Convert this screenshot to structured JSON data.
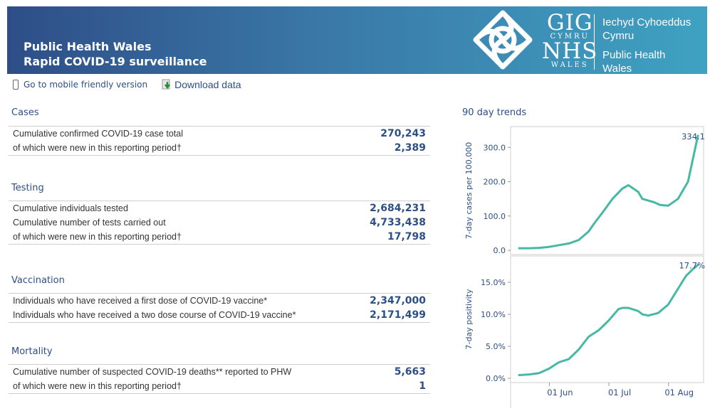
{
  "header": {
    "title_line1": "Public Health Wales",
    "title_line2": "Rapid COVID-19 surveillance",
    "logo_gig": "GIG",
    "logo_cymru": "CYMRU",
    "logo_nhs": "NHS",
    "logo_wales": "WALES",
    "org_welsh_1": "Iechyd Cyhoeddus",
    "org_welsh_2": "Cymru",
    "org_english_1": "Public Health",
    "org_english_2": "Wales"
  },
  "toolbar": {
    "mobile_label": "Go to mobile friendly version",
    "download_label": "Download data"
  },
  "sections": {
    "cases": {
      "title": "Cases",
      "rows": [
        {
          "label": "Cumulative confirmed COVID-19 case total",
          "value": "270,243"
        },
        {
          "label": "of which were new in this reporting period†",
          "value": "2,389"
        }
      ]
    },
    "testing": {
      "title": "Testing",
      "rows": [
        {
          "label": "Cumulative individuals tested",
          "value": "2,684,231"
        },
        {
          "label": "Cumulative number of tests carried out",
          "value": "4,733,438"
        },
        {
          "label": "of which were new in this reporting period†",
          "value": "17,798"
        }
      ]
    },
    "vaccination": {
      "title": "Vaccination",
      "rows": [
        {
          "label": "Individuals who have received a first dose of COVID-19 vaccine*",
          "value": "2,347,000"
        },
        {
          "label": "Individuals who have received a two dose course of COVID-19 vaccine*",
          "value": "2,171,499"
        }
      ]
    },
    "mortality": {
      "title": "Mortality",
      "rows": [
        {
          "label": "Cumulative number of suspected COVID-19 deaths** reported to PHW",
          "value": "5,663"
        },
        {
          "label": "of which were new in this reporting period†",
          "value": "1"
        }
      ]
    }
  },
  "trends_title": "90 day trends",
  "colors": {
    "banner_start": "#2e4e87",
    "banner_end": "#3fa2c2",
    "line": "#45b9a3",
    "value_text": "#2c4f86"
  },
  "chart_data": [
    {
      "type": "line",
      "ylabel": "7-day cases per 100,000",
      "ylim": [
        0,
        340
      ],
      "yticks": [
        "0.0",
        "100.0",
        "200.0",
        "300.0"
      ],
      "last_label": "334.1",
      "xticks": [
        "01 Jun",
        "01 Jul",
        "01 Aug"
      ],
      "x": [
        0,
        5,
        10,
        15,
        20,
        25,
        30,
        35,
        38,
        42,
        47,
        52,
        55,
        60,
        62,
        65,
        68,
        71,
        75,
        80,
        85,
        88,
        90
      ],
      "values": [
        6,
        6,
        7,
        10,
        15,
        20,
        30,
        55,
        80,
        110,
        150,
        180,
        190,
        170,
        150,
        145,
        140,
        132,
        130,
        150,
        200,
        280,
        334
      ]
    },
    {
      "type": "line",
      "ylabel": "7-day positivity",
      "ylim": [
        0,
        18
      ],
      "yticks": [
        "0.0%",
        "5.0%",
        "10.0%",
        "15.0%"
      ],
      "last_label": "17.7%",
      "xticks": [
        "01 Jun",
        "01 Jul",
        "01 Aug"
      ],
      "x": [
        0,
        5,
        10,
        15,
        20,
        25,
        30,
        35,
        40,
        45,
        50,
        52,
        55,
        60,
        62,
        65,
        70,
        75,
        80,
        84,
        88,
        90
      ],
      "values": [
        0.5,
        0.6,
        0.8,
        1.5,
        2.5,
        3.0,
        4.5,
        6.5,
        7.5,
        9.0,
        10.8,
        11.0,
        11.0,
        10.5,
        10.0,
        9.8,
        10.2,
        11.5,
        14.0,
        16.0,
        17.2,
        17.7
      ]
    }
  ]
}
